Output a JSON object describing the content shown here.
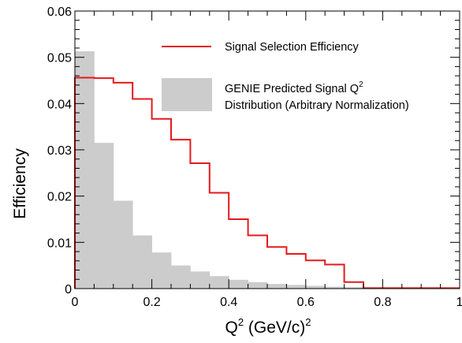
{
  "chart_data": {
    "type": "bar",
    "xlabel": "Q",
    "xlabel_sup": "2",
    "xlabel_unit": " (GeV/c)",
    "xlabel_unit_sup": "2",
    "ylabel": "Efficiency",
    "xlim": [
      0,
      1
    ],
    "ylim": [
      0,
      0.06
    ],
    "x_ticks": [
      {
        "value": 0,
        "label": "0"
      },
      {
        "value": 0.2,
        "label": "0.2"
      },
      {
        "value": 0.4,
        "label": "0.4"
      },
      {
        "value": 0.6,
        "label": "0.6"
      },
      {
        "value": 0.8,
        "label": "0.8"
      },
      {
        "value": 1,
        "label": "1"
      }
    ],
    "y_ticks": [
      {
        "value": 0,
        "label": "0"
      },
      {
        "value": 0.01,
        "label": "0.01"
      },
      {
        "value": 0.02,
        "label": "0.02"
      },
      {
        "value": 0.03,
        "label": "0.03"
      },
      {
        "value": 0.04,
        "label": "0.04"
      },
      {
        "value": 0.05,
        "label": "0.05"
      },
      {
        "value": 0.06,
        "label": "0.06"
      }
    ],
    "bin_edges": [
      0,
      0.05,
      0.1,
      0.15,
      0.2,
      0.25,
      0.3,
      0.35,
      0.4,
      0.45,
      0.5,
      0.55,
      0.6,
      0.65,
      0.7,
      0.75,
      0.8,
      0.85,
      0.9,
      0.95,
      1.0
    ],
    "series": [
      {
        "name": "Signal Selection Efficiency",
        "style": "step",
        "color": "#e41a1c",
        "values": [
          0.0456,
          0.0455,
          0.0445,
          0.041,
          0.0367,
          0.0322,
          0.0271,
          0.0207,
          0.015,
          0.0115,
          0.009,
          0.0075,
          0.0061,
          0.0052,
          0.0014,
          0.0001,
          0.0001,
          0.0001,
          0.0001,
          0.0001
        ]
      },
      {
        "name": "GENIE Predicted Signal Q² Distribution (Arbitrary Normalization)",
        "legend_line1": "GENIE Predicted Signal Q",
        "legend_line1_sup": "2",
        "legend_line2": "Distribution (Arbitrary Normalization)",
        "style": "filled-histogram",
        "color": "#cccccc",
        "values": [
          0.0513,
          0.0315,
          0.019,
          0.0115,
          0.0078,
          0.005,
          0.0037,
          0.0027,
          0.0019,
          0.0014,
          0.001,
          0.0008,
          0.0006,
          0.0004,
          0.0003,
          0.0002,
          0.0001,
          0.0001,
          0.0001,
          0.0001
        ]
      }
    ],
    "legend_position": "top-right",
    "grid": false
  }
}
